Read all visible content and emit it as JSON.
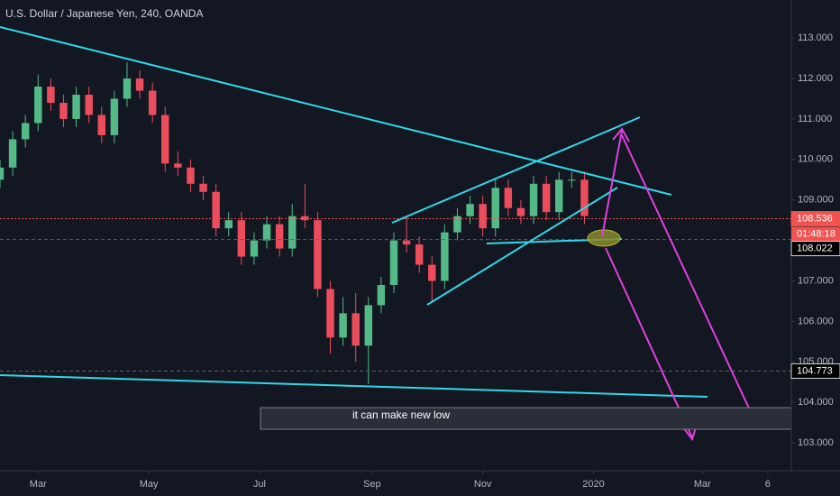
{
  "chart_data": {
    "type": "candlestick",
    "title": "U.S. Dollar / Japanese Yen, 240, OANDA",
    "x": [
      38,
      45,
      52,
      59,
      66,
      73,
      80,
      87,
      94,
      101,
      108,
      115,
      122,
      129,
      136,
      143,
      150,
      157,
      164,
      171,
      178,
      185,
      192,
      199,
      206,
      213,
      220,
      227,
      234,
      241,
      248,
      255,
      262,
      269,
      276,
      283,
      290,
      297,
      304,
      311,
      318,
      325,
      332,
      339,
      346,
      353,
      360
    ],
    "open": [
      109.5,
      109.8,
      110.5,
      110.9,
      111.8,
      111.4,
      111.0,
      111.6,
      111.1,
      110.6,
      111.5,
      112.0,
      111.7,
      111.1,
      109.9,
      109.8,
      109.4,
      109.2,
      108.3,
      108.5,
      107.6,
      108.0,
      108.4,
      107.8,
      108.6,
      108.5,
      106.8,
      105.6,
      106.2,
      105.4,
      106.4,
      106.9,
      108.0,
      107.9,
      107.4,
      107.0,
      108.2,
      108.6,
      108.9,
      108.3,
      109.3,
      108.8,
      108.6,
      109.4,
      108.7,
      109.5,
      109.5
    ],
    "high": [
      110.0,
      110.7,
      111.1,
      112.1,
      112.0,
      111.6,
      111.8,
      111.8,
      111.3,
      111.7,
      112.4,
      112.2,
      111.9,
      111.3,
      110.2,
      110.0,
      109.6,
      109.4,
      108.7,
      108.7,
      108.2,
      108.6,
      108.6,
      108.9,
      109.4,
      108.7,
      107.0,
      106.6,
      106.7,
      106.6,
      107.1,
      108.2,
      108.6,
      108.1,
      107.6,
      108.4,
      108.8,
      109.1,
      109.1,
      109.5,
      109.5,
      109.0,
      109.6,
      109.6,
      109.7,
      109.7,
      109.7
    ],
    "low": [
      109.3,
      109.6,
      110.3,
      110.7,
      111.2,
      110.8,
      110.8,
      110.9,
      110.4,
      110.4,
      111.3,
      111.5,
      110.9,
      109.7,
      109.6,
      109.2,
      109.0,
      108.1,
      108.1,
      107.4,
      107.4,
      107.8,
      107.6,
      107.6,
      108.3,
      106.6,
      105.2,
      105.4,
      105.0,
      104.45,
      106.2,
      106.7,
      107.7,
      107.2,
      106.5,
      106.8,
      108.0,
      108.4,
      108.1,
      108.1,
      108.6,
      108.4,
      108.4,
      108.5,
      108.5,
      109.3,
      108.4
    ],
    "close": [
      109.8,
      110.5,
      110.9,
      111.8,
      111.4,
      111.0,
      111.6,
      111.1,
      110.6,
      111.5,
      112.0,
      111.7,
      111.1,
      109.9,
      109.8,
      109.4,
      109.2,
      108.3,
      108.5,
      107.6,
      108.0,
      108.4,
      107.8,
      108.6,
      108.5,
      106.8,
      105.6,
      106.2,
      105.4,
      106.4,
      106.9,
      108.0,
      107.9,
      107.4,
      107.0,
      108.2,
      108.6,
      108.9,
      108.3,
      109.3,
      108.8,
      108.6,
      109.4,
      108.7,
      109.5,
      109.5,
      108.6
    ],
    "up_color": "#53b987",
    "down_color": "#eb4d5c",
    "xlim": [
      38,
      474
    ],
    "xticks": [
      {
        "value": 59,
        "label": "Mar"
      },
      {
        "value": 120,
        "label": "May"
      },
      {
        "value": 181,
        "label": "Jul"
      },
      {
        "value": 243,
        "label": "Sep"
      },
      {
        "value": 304,
        "label": "Nov"
      },
      {
        "value": 365,
        "label": "2020"
      },
      {
        "value": 425,
        "label": "Mar"
      },
      {
        "value": 461,
        "label": "6"
      }
    ],
    "ylim": [
      102.31,
      113.94
    ],
    "yticks": [
      {
        "value": 103,
        "label": "103.000"
      },
      {
        "value": 104,
        "label": "104.000"
      },
      {
        "value": 105,
        "label": "105.000"
      },
      {
        "value": 106,
        "label": "106.000"
      },
      {
        "value": 107,
        "label": "107.000"
      },
      {
        "value": 108,
        "label": "108.000"
      },
      {
        "value": 109,
        "label": "109.000"
      },
      {
        "value": 110,
        "label": "110.000"
      },
      {
        "value": 111,
        "label": "111.000"
      },
      {
        "value": 112,
        "label": "112.000"
      },
      {
        "value": 113,
        "label": "113.000"
      }
    ],
    "grid": false,
    "price_lines": [
      {
        "value": 108.536,
        "label": "108.536",
        "color": "#ef5350"
      },
      {
        "value": 108.022,
        "label": "108.022",
        "color": "#000000"
      },
      {
        "value": 104.773,
        "label": "104.773",
        "color": "#000000"
      }
    ],
    "countdown": "01:48:18",
    "annotation": "it can make new low"
  }
}
